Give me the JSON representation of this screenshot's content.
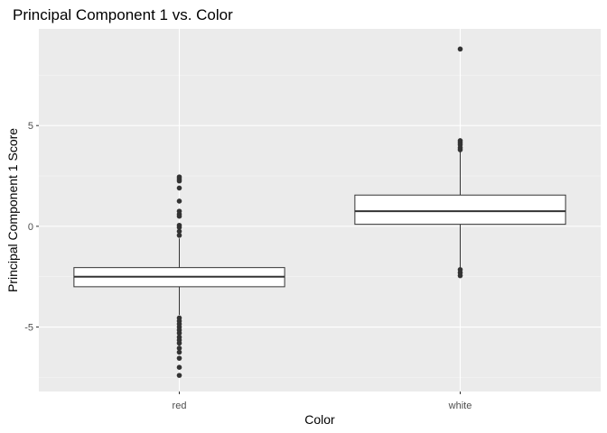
{
  "chart_data": {
    "type": "boxplot",
    "title": "Principal Component 1 vs. Color",
    "xlabel": "Color",
    "ylabel": "Principal Component 1 Score",
    "categories": [
      "red",
      "white"
    ],
    "ylim": [
      -8.2,
      9.8
    ],
    "yticks": [
      -5,
      0,
      5
    ],
    "grid": true,
    "boxes": [
      {
        "category": "red",
        "q1": -3.0,
        "median": -2.5,
        "q3": -2.05,
        "whisker_low": -4.4,
        "whisker_high": -0.6,
        "outliers": [
          2.45,
          2.35,
          2.25,
          1.9,
          1.25,
          0.75,
          0.6,
          0.5,
          0.05,
          -0.05,
          -0.25,
          -0.45,
          -4.55,
          -4.7,
          -4.85,
          -5.0,
          -5.15,
          -5.3,
          -5.5,
          -5.65,
          -5.8,
          -6.05,
          -6.25,
          -6.55,
          -7.0,
          -7.4
        ]
      },
      {
        "category": "white",
        "q1": 0.1,
        "median": 0.75,
        "q3": 1.55,
        "whisker_low": -2.1,
        "whisker_high": 3.7,
        "outliers": [
          8.8,
          4.25,
          4.15,
          4.05,
          3.9,
          3.8,
          -2.15,
          -2.3,
          -2.45
        ]
      }
    ]
  }
}
